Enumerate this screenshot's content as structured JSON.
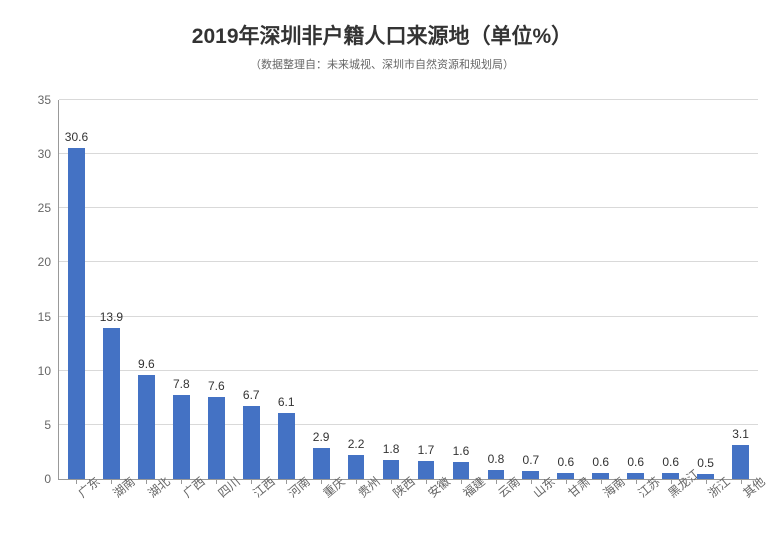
{
  "chart": {
    "type": "bar",
    "title_main": "2019年深圳非户籍人口来源地（单位%）",
    "title_sub": "（数据整理自：未来城视、深圳市自然资源和规划局）",
    "title_main_fontsize": 21,
    "title_sub_fontsize": 11,
    "title_main_color": "#333333",
    "title_sub_color": "#666666",
    "categories": [
      "广东",
      "湖南",
      "湖北",
      "广西",
      "四川",
      "江西",
      "河南",
      "重庆",
      "贵州",
      "陕西",
      "安徽",
      "福建",
      "云南",
      "山东",
      "甘肃",
      "海南",
      "江苏",
      "黑龙江",
      "浙江",
      "其他"
    ],
    "values": [
      30.6,
      13.9,
      9.6,
      7.8,
      7.6,
      6.7,
      6.1,
      2.9,
      2.2,
      1.8,
      1.7,
      1.6,
      0.8,
      0.7,
      0.6,
      0.6,
      0.6,
      0.6,
      0.5,
      3.1
    ],
    "bar_color": "#4472c4",
    "background_color": "#ffffff",
    "grid_color": "#d9d9d9",
    "axis_color": "#999999",
    "label_fontsize": 12,
    "label_color": "#333333",
    "tick_color": "#666666",
    "ylim": [
      0,
      35
    ],
    "ytick_step": 5,
    "bar_width_ratio": 0.48,
    "x_label_rotation": -40
  }
}
